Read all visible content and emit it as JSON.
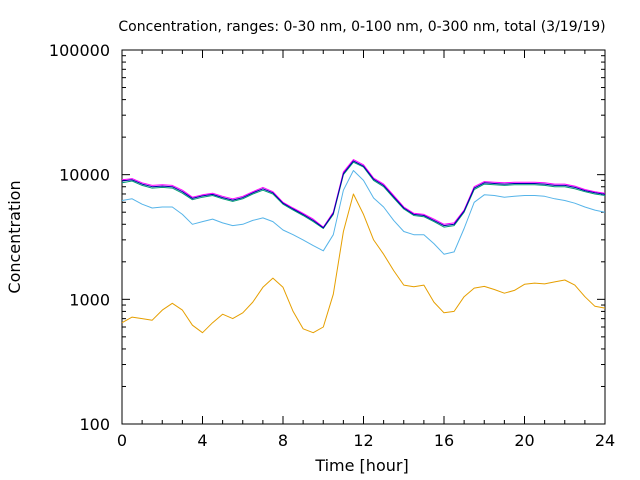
{
  "chart_data": {
    "type": "line",
    "title": "Concentration, ranges: 0-30 nm, 0-100 nm, 0-300 nm, total (3/19/19)",
    "xlabel": "Time [hour]",
    "ylabel": "Concentration",
    "xlim": [
      0,
      24
    ],
    "ylim": [
      100,
      100000
    ],
    "yscale": "log",
    "grid": false,
    "x_ticks": [
      "0",
      "4",
      "8",
      "12",
      "16",
      "20",
      "24"
    ],
    "x_tick_values": [
      0,
      4,
      8,
      12,
      16,
      20,
      24
    ],
    "y_ticks": [
      "100",
      "1000",
      "10000",
      "100000"
    ],
    "y_tick_values": [
      100,
      1000,
      10000,
      100000
    ],
    "series": [
      {
        "color": "#e69f00",
        "x": [
          0,
          0.5,
          1,
          1.5,
          2,
          2.5,
          3,
          3.5,
          4,
          4.5,
          5,
          5.5,
          6,
          6.5,
          7,
          7.5,
          8,
          8.5,
          9,
          9.5,
          10,
          10.5,
          11,
          11.5,
          12,
          12.5,
          13,
          13.5,
          14,
          14.5,
          15,
          15.5,
          16,
          16.5,
          17,
          17.5,
          18,
          18.5,
          19,
          19.5,
          20,
          20.5,
          21,
          21.5,
          22,
          22.5,
          23,
          23.5,
          24
        ],
        "y": [
          650,
          720,
          700,
          680,
          820,
          930,
          820,
          620,
          540,
          650,
          760,
          700,
          780,
          950,
          1250,
          1480,
          1250,
          800,
          580,
          540,
          600,
          1100,
          3500,
          7000,
          4800,
          3000,
          2300,
          1700,
          1300,
          1260,
          1300,
          950,
          780,
          800,
          1050,
          1230,
          1270,
          1200,
          1120,
          1180,
          1320,
          1350,
          1330,
          1380,
          1430,
          1300,
          1050,
          880,
          850
        ]
      },
      {
        "color": "#56b4e9",
        "x": [
          0,
          0.5,
          1,
          1.5,
          2,
          2.5,
          3,
          3.5,
          4,
          4.5,
          5,
          5.5,
          6,
          6.5,
          7,
          7.5,
          8,
          8.5,
          9,
          9.5,
          10,
          10.5,
          11,
          11.5,
          12,
          12.5,
          13,
          13.5,
          14,
          14.5,
          15,
          15.5,
          16,
          16.5,
          17,
          17.5,
          18,
          18.5,
          19,
          19.5,
          20,
          20.5,
          21,
          21.5,
          22,
          22.5,
          23,
          23.5,
          24
        ],
        "y": [
          6200,
          6400,
          5800,
          5400,
          5500,
          5500,
          4800,
          4000,
          4200,
          4400,
          4100,
          3900,
          4000,
          4300,
          4500,
          4200,
          3600,
          3300,
          3000,
          2700,
          2450,
          3300,
          7500,
          10800,
          9000,
          6500,
          5500,
          4300,
          3500,
          3300,
          3300,
          2800,
          2300,
          2400,
          3700,
          6000,
          6900,
          6800,
          6600,
          6700,
          6800,
          6800,
          6700,
          6400,
          6200,
          5900,
          5500,
          5200,
          5000
        ]
      },
      {
        "color": "#009e73",
        "x": [
          0,
          0.5,
          1,
          1.5,
          2,
          2.5,
          3,
          3.5,
          4,
          4.5,
          5,
          5.5,
          6,
          6.5,
          7,
          7.5,
          8,
          8.5,
          9,
          9.5,
          10,
          10.5,
          11,
          11.5,
          12,
          12.5,
          13,
          13.5,
          14,
          14.5,
          15,
          15.5,
          16,
          16.5,
          17,
          17.5,
          18,
          18.5,
          19,
          19.5,
          20,
          20.5,
          21,
          21.5,
          22,
          22.5,
          23,
          23.5,
          24
        ],
        "y": [
          8600,
          8900,
          8200,
          7800,
          7900,
          7800,
          7100,
          6300,
          6600,
          6800,
          6400,
          6100,
          6400,
          7000,
          7500,
          7000,
          5800,
          5200,
          4700,
          4200,
          3700,
          4800,
          10000,
          12600,
          11500,
          9000,
          8000,
          6500,
          5300,
          4700,
          4600,
          4200,
          3800,
          3900,
          5000,
          7600,
          8400,
          8300,
          8200,
          8300,
          8300,
          8300,
          8200,
          8000,
          8000,
          7700,
          7300,
          7000,
          6800
        ]
      },
      {
        "color": "#ff00ff",
        "x": [
          0,
          0.5,
          1,
          1.5,
          2,
          2.5,
          3,
          3.5,
          4,
          4.5,
          5,
          5.5,
          6,
          6.5,
          7,
          7.5,
          8,
          8.5,
          9,
          9.5,
          10,
          10.5,
          11,
          11.5,
          12,
          12.5,
          13,
          13.5,
          14,
          14.5,
          15,
          15.5,
          16,
          16.5,
          17,
          17.5,
          18,
          18.5,
          19,
          19.5,
          20,
          20.5,
          21,
          21.5,
          22,
          22.5,
          23,
          23.5,
          24
        ],
        "y": [
          9100,
          9300,
          8600,
          8200,
          8300,
          8200,
          7500,
          6600,
          6900,
          7100,
          6700,
          6400,
          6700,
          7300,
          7900,
          7300,
          6000,
          5400,
          4900,
          4400,
          3800,
          5000,
          10500,
          13200,
          12000,
          9400,
          8400,
          6800,
          5500,
          4900,
          4800,
          4400,
          4000,
          4100,
          5200,
          8000,
          8800,
          8700,
          8600,
          8700,
          8700,
          8700,
          8600,
          8400,
          8400,
          8100,
          7600,
          7300,
          7100
        ]
      },
      {
        "color": "#0000aa",
        "x": [
          0,
          0.5,
          1,
          1.5,
          2,
          2.5,
          3,
          3.5,
          4,
          4.5,
          5,
          5.5,
          6,
          6.5,
          7,
          7.5,
          8,
          8.5,
          9,
          9.5,
          10,
          10.5,
          11,
          11.5,
          12,
          12.5,
          13,
          13.5,
          14,
          14.5,
          15,
          15.5,
          16,
          16.5,
          17,
          17.5,
          18,
          18.5,
          19,
          19.5,
          20,
          20.5,
          21,
          21.5,
          22,
          22.5,
          23,
          23.5,
          24
        ],
        "y": [
          8900,
          9100,
          8400,
          8000,
          8100,
          8000,
          7300,
          6450,
          6750,
          6950,
          6550,
          6250,
          6550,
          7150,
          7700,
          7150,
          5900,
          5300,
          4800,
          4300,
          3750,
          4900,
          10200,
          12900,
          11700,
          9200,
          8200,
          6650,
          5400,
          4800,
          4700,
          4300,
          3900,
          4000,
          5100,
          7800,
          8600,
          8500,
          8400,
          8500,
          8500,
          8500,
          8400,
          8200,
          8200,
          7900,
          7450,
          7150,
          6950
        ]
      }
    ]
  }
}
